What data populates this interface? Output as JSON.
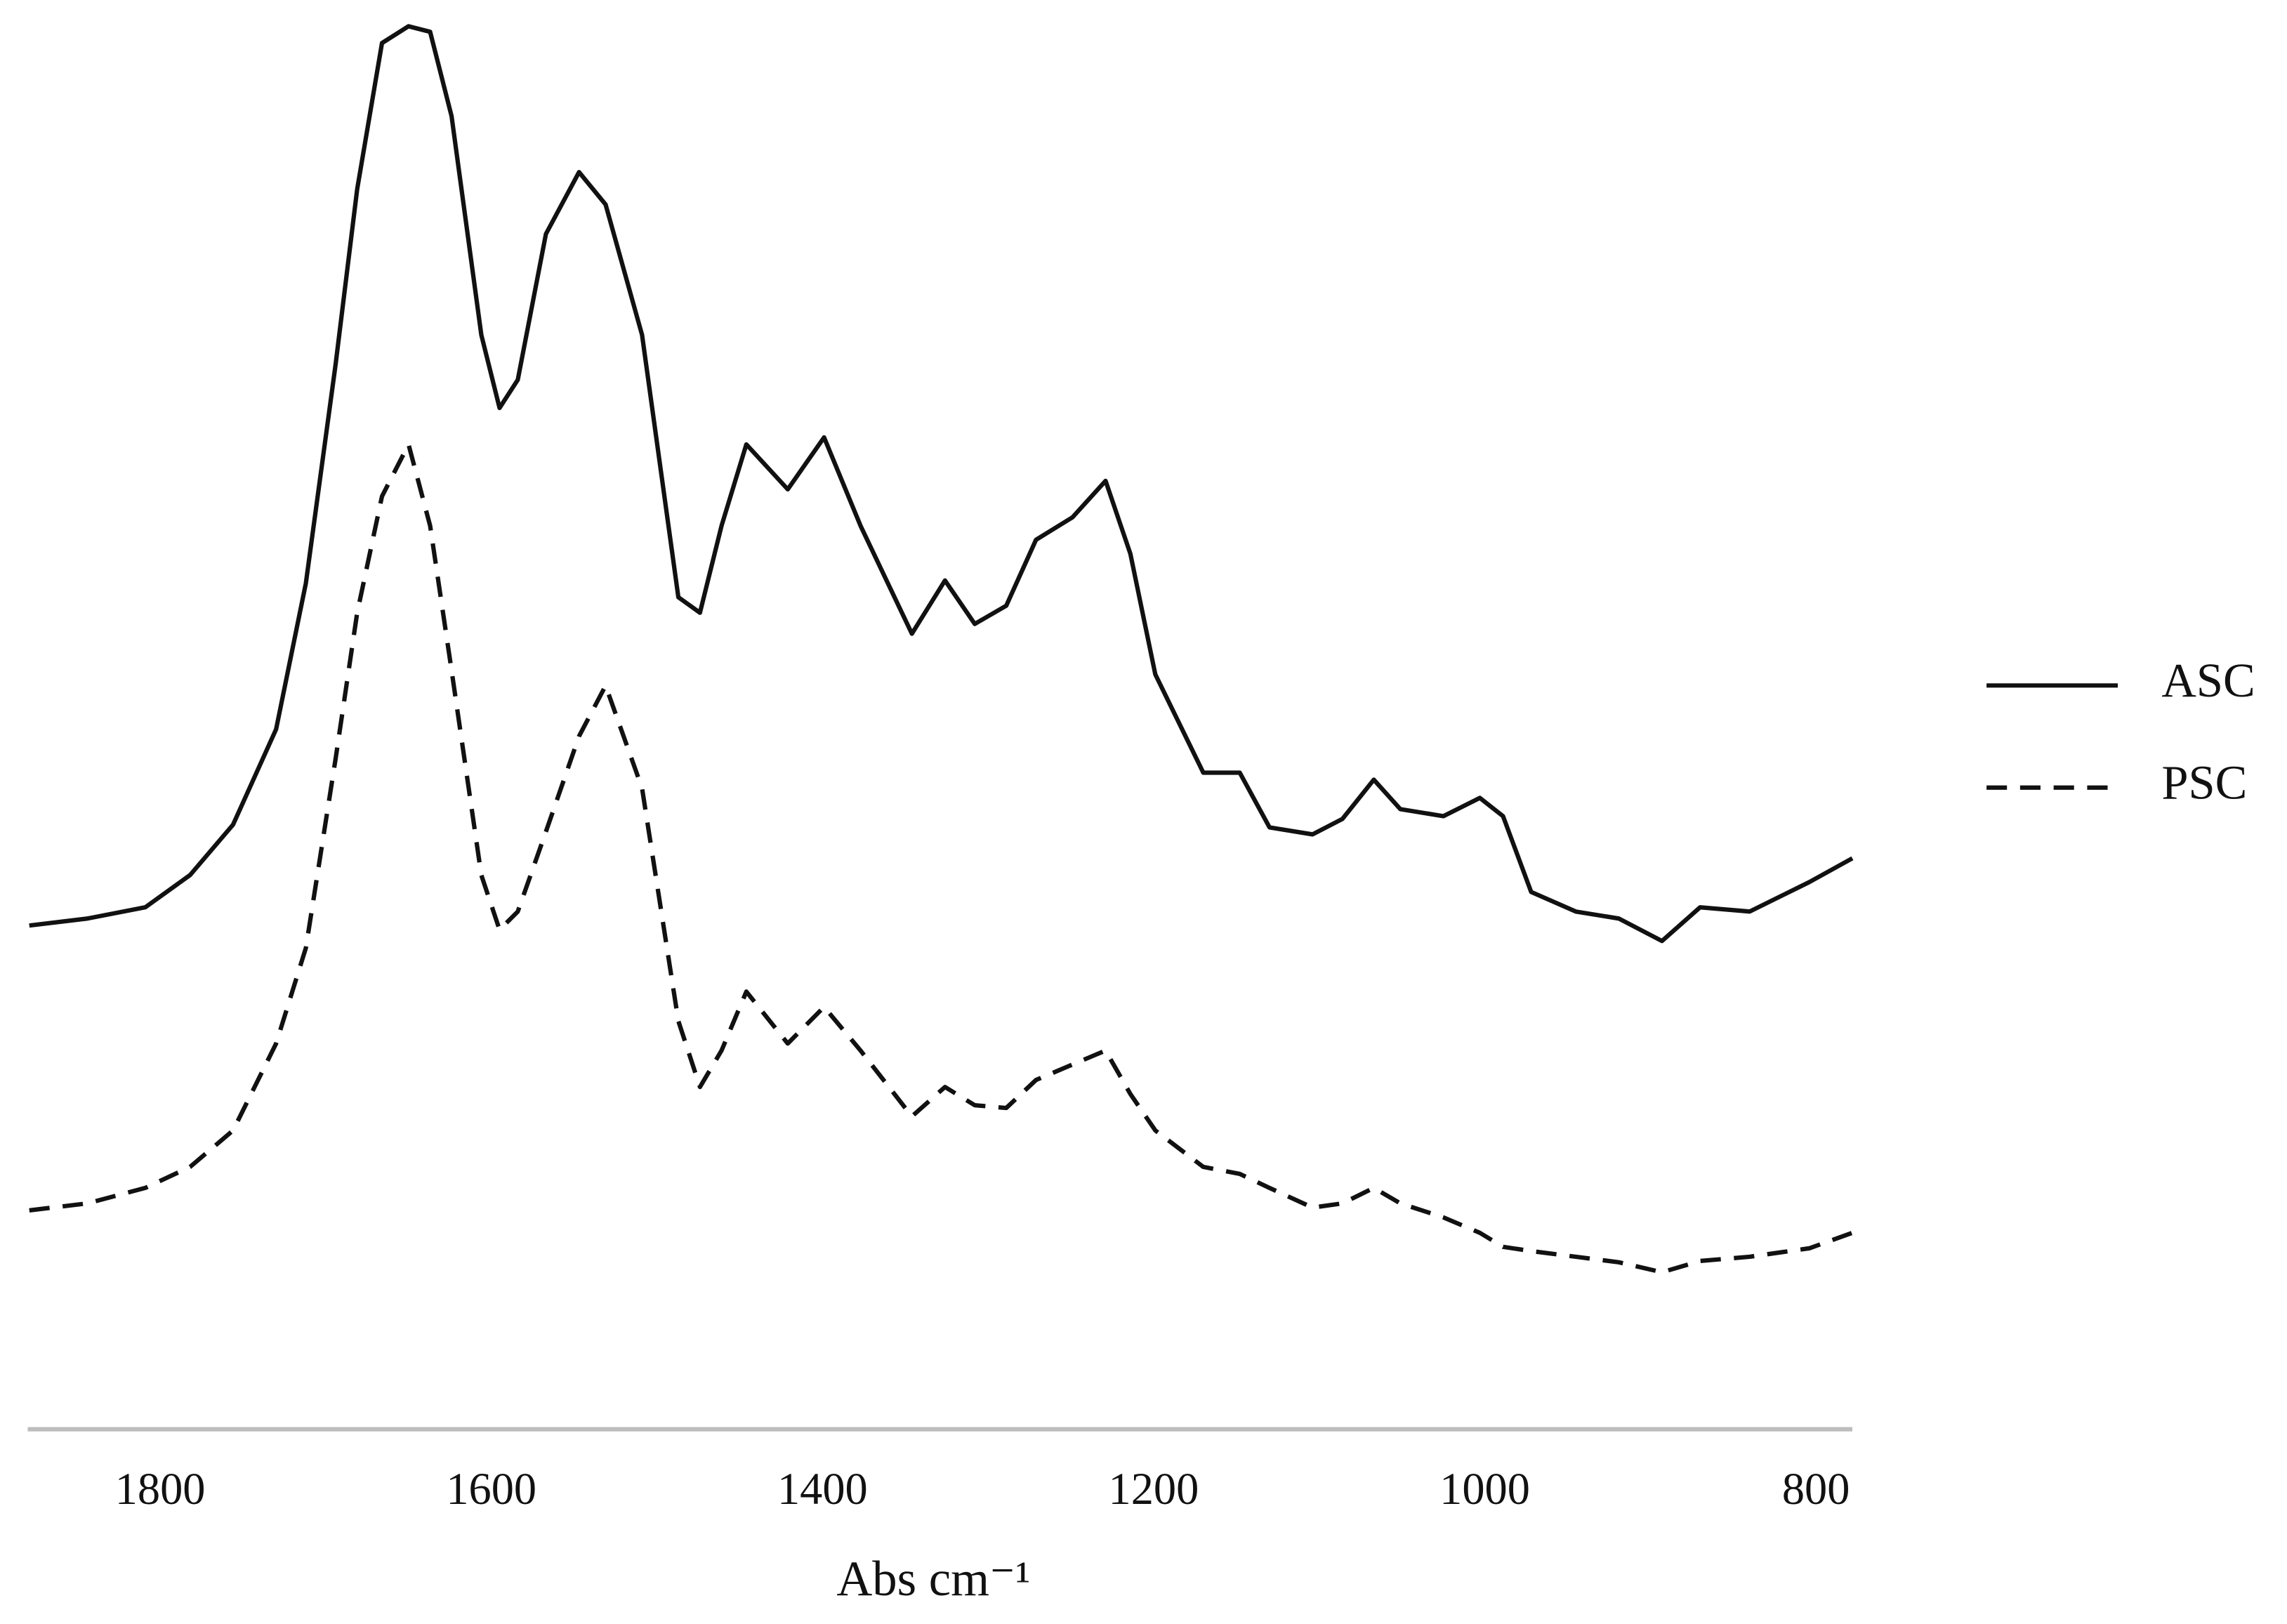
{
  "chart_data": {
    "type": "line",
    "x_label": "Abs cm⁻¹",
    "xlim": [
      1880,
      778
    ],
    "xticks": [
      1800,
      1600,
      1400,
      1200,
      1000,
      800
    ],
    "ylim": [
      0,
      100
    ],
    "grid": false,
    "legend": "right",
    "x": [
      1879,
      1844,
      1809,
      1782,
      1756,
      1730,
      1712,
      1694,
      1681,
      1666,
      1650,
      1637,
      1624,
      1606,
      1595,
      1584,
      1567,
      1547,
      1531,
      1509,
      1487,
      1474,
      1461,
      1446,
      1421,
      1399,
      1377,
      1346,
      1326,
      1308,
      1289,
      1271,
      1249,
      1229,
      1214,
      1199,
      1170,
      1148,
      1130,
      1104,
      1086,
      1067,
      1051,
      1025,
      1003,
      989,
      972,
      945,
      919,
      893,
      870,
      840,
      804,
      778
    ],
    "series": [
      {
        "name": "ASC",
        "color": "#111111",
        "style": "solid",
        "values": [
          35.9,
          36.4,
          37.2,
          39.5,
          43.1,
          49.9,
          60.3,
          75.9,
          88.4,
          98.8,
          100,
          99.6,
          93.6,
          78.0,
          72.8,
          74.8,
          85.2,
          89.6,
          87.3,
          78.0,
          59.3,
          58.2,
          64.4,
          70.2,
          67.0,
          70.7,
          64.4,
          56.7,
          60.5,
          57.4,
          58.7,
          63.4,
          65.0,
          67.6,
          62.4,
          53.8,
          46.8,
          46.8,
          42.9,
          42.4,
          43.5,
          46.3,
          44.2,
          43.7,
          45.0,
          43.7,
          38.3,
          36.9,
          36.4,
          34.8,
          37.2,
          36.9,
          39.0,
          40.7
        ]
      },
      {
        "name": "PSC",
        "color": "#111111",
        "style": "dashed",
        "values": [
          15.6,
          16.1,
          17.2,
          18.7,
          21.3,
          27.5,
          34.3,
          47.8,
          58.2,
          66.5,
          70.2,
          64.4,
          54.1,
          39.5,
          35.6,
          36.9,
          42.6,
          49.4,
          53.0,
          45.7,
          29.1,
          24.4,
          27.0,
          31.2,
          27.5,
          30.1,
          27.0,
          22.3,
          24.4,
          23.1,
          22.9,
          24.9,
          26.0,
          27.0,
          23.9,
          21.3,
          18.7,
          18.2,
          17.2,
          15.8,
          16.1,
          17.2,
          16.1,
          15.1,
          14.0,
          13.0,
          12.7,
          12.3,
          11.9,
          11.2,
          12.0,
          12.3,
          12.9,
          14.0
        ]
      }
    ]
  }
}
